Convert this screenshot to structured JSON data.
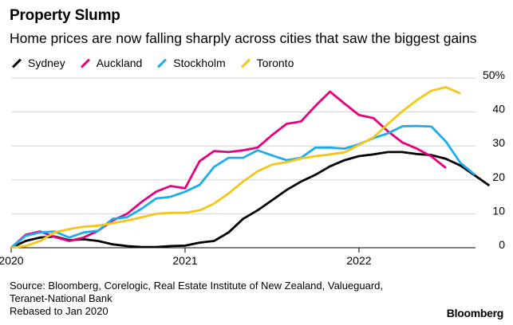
{
  "title": "Property Slump",
  "subtitle": "Home prices are now falling sharply across cities that saw the biggest gains",
  "source_lines": [
    "Source: Bloomberg, Corelogic, Real Estate Institute of New Zealand, Valueguard,",
    "Teranet-National Bank",
    "Rebased to Jan 2020"
  ],
  "brand": "Bloomberg",
  "chart_data": {
    "type": "line",
    "title": "Property Slump",
    "xlabel": "",
    "ylabel": "",
    "x_start": 2020.0,
    "x_step": 0.08333,
    "xlim": [
      2020.0,
      2022.67
    ],
    "ylim": [
      0,
      50
    ],
    "y_ticks": [
      0,
      10,
      20,
      30,
      40,
      50
    ],
    "y_tick_labels": [
      "0",
      "10",
      "20",
      "30",
      "40",
      "50%"
    ],
    "x_ticks": [
      2020,
      2021,
      2022
    ],
    "x_tick_labels": [
      "2020",
      "2021",
      "2022"
    ],
    "grid": "horizontal",
    "legend_position": "top-left",
    "series": [
      {
        "name": "Sydney",
        "color": "#000000",
        "values": [
          0,
          2,
          3,
          3.3,
          2.2,
          2.5,
          2,
          1,
          0.5,
          0.2,
          0.2,
          0.5,
          0.6,
          1.5,
          2,
          4.5,
          8.5,
          11,
          14,
          17,
          19.5,
          21.5,
          24,
          25.8,
          27,
          27.5,
          28.2,
          28.2,
          27.6,
          27.3,
          26.2,
          24.2,
          21.3,
          18.3
        ]
      },
      {
        "name": "Auckland",
        "color": "#e6007e",
        "values": [
          0,
          3.8,
          4.8,
          3.2,
          2,
          3,
          5,
          8,
          10,
          13.5,
          16.5,
          18.2,
          17.5,
          25.5,
          28.5,
          28.2,
          28.7,
          29.5,
          33.2,
          36.5,
          37.2,
          41.8,
          46,
          42.5,
          39.1,
          38.2,
          34.3,
          31,
          29.2,
          26.9,
          23.5
        ]
      },
      {
        "name": "Stockholm",
        "color": "#1cadea",
        "values": [
          0,
          3.5,
          4.5,
          4.8,
          3,
          4.5,
          5,
          8.5,
          9,
          11.5,
          14.5,
          15,
          16.5,
          18.5,
          23.8,
          26.5,
          26.5,
          28.7,
          27.2,
          25.8,
          26.5,
          29.5,
          29.5,
          29.2,
          30.5,
          32.3,
          33.7,
          35.8,
          35.9,
          35.7,
          31.3,
          25,
          21.5
        ]
      },
      {
        "name": "Toronto",
        "color": "#f5c518",
        "values": [
          0,
          0.5,
          2,
          4.5,
          5.5,
          6.2,
          6.5,
          7.2,
          8,
          9,
          10,
          10.3,
          10.3,
          11,
          13,
          16,
          19.5,
          22.5,
          24.5,
          25.2,
          26.3,
          27,
          27.5,
          28.1,
          30.3,
          32.5,
          36.5,
          40.2,
          43.5,
          46.3,
          47.3,
          45.5
        ]
      }
    ]
  }
}
